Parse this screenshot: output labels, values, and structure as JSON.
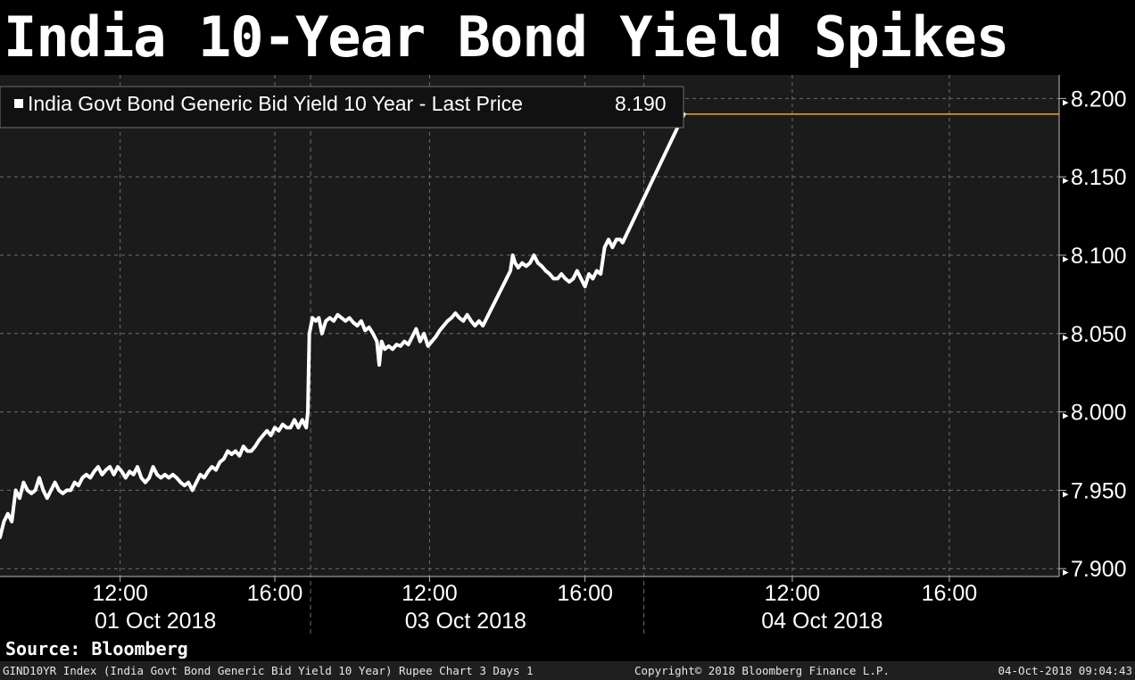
{
  "title": "India 10-Year Bond Yield Spikes",
  "source": "Source: Bloomberg",
  "footer": {
    "left": "GIND10YR Index (India Govt Bond Generic Bid Yield 10 Year) Rupee Chart 3 Days 1",
    "center": "Copyright© 2018 Bloomberg Finance L.P.",
    "right": "04-Oct-2018 09:04:43"
  },
  "colors": {
    "background": "#000000",
    "plot_background": "#1b1b1b",
    "line": "#ffffff",
    "last_price_line": "#f5a623",
    "grid": "#6e6e6e"
  },
  "chart_data": {
    "type": "line",
    "title": "India 10-Year Bond Yield Spikes",
    "legend": "India Govt Bond Generic Bid Yield 10 Year - Last Price",
    "legend_value": "8.190",
    "legend_position": "top-left",
    "last_price": 8.19,
    "ylim": [
      7.895,
      8.215
    ],
    "y_ticks": [
      7.9,
      7.95,
      8.0,
      8.05,
      8.1,
      8.15,
      8.2
    ],
    "y_tick_labels": [
      "7.900",
      "7.950",
      "8.000",
      "8.050",
      "8.100",
      "8.150",
      "8.200"
    ],
    "xlim": [
      0,
      100
    ],
    "x_ticks": [
      {
        "x": 15.3,
        "label": "12:00"
      },
      {
        "x": 35.0,
        "label": "16:00"
      },
      {
        "x": 54.7,
        "label": "12:00"
      },
      {
        "x": 74.5,
        "label": "16:00"
      },
      {
        "x": 100.9,
        "label": "12:00"
      },
      {
        "x": 120.9,
        "label": "16:00"
      }
    ],
    "day_labels": [
      {
        "x": 19.8,
        "label": "01 Oct 2018"
      },
      {
        "x": 59.3,
        "label": "03 Oct 2018"
      },
      {
        "x": 104.7,
        "label": "04 Oct 2018"
      }
    ],
    "grid": true,
    "series": [
      {
        "values": [
          [
            0,
            7.92
          ],
          [
            0.5,
            7.93
          ],
          [
            1,
            7.935
          ],
          [
            1.5,
            7.93
          ],
          [
            2,
            7.95
          ],
          [
            2.5,
            7.945
          ],
          [
            3,
            7.955
          ],
          [
            3.5,
            7.95
          ],
          [
            4,
            7.948
          ],
          [
            4.5,
            7.95
          ],
          [
            5,
            7.958
          ],
          [
            5.5,
            7.95
          ],
          [
            6,
            7.945
          ],
          [
            6.5,
            7.95
          ],
          [
            7,
            7.955
          ],
          [
            7.5,
            7.95
          ],
          [
            8,
            7.948
          ],
          [
            8.5,
            7.95
          ],
          [
            9,
            7.95
          ],
          [
            9.5,
            7.955
          ],
          [
            10,
            7.953
          ],
          [
            10.5,
            7.958
          ],
          [
            11,
            7.96
          ],
          [
            11.5,
            7.958
          ],
          [
            12,
            7.962
          ],
          [
            12.5,
            7.965
          ],
          [
            13,
            7.96
          ],
          [
            13.5,
            7.963
          ],
          [
            14,
            7.965
          ],
          [
            14.5,
            7.96
          ],
          [
            15,
            7.965
          ],
          [
            15.5,
            7.962
          ],
          [
            16,
            7.958
          ],
          [
            16.5,
            7.962
          ],
          [
            17,
            7.96
          ],
          [
            17.5,
            7.965
          ],
          [
            18,
            7.958
          ],
          [
            18.5,
            7.955
          ],
          [
            19,
            7.958
          ],
          [
            19.5,
            7.965
          ],
          [
            20,
            7.96
          ],
          [
            20.5,
            7.958
          ],
          [
            21,
            7.96
          ],
          [
            21.5,
            7.958
          ],
          [
            22,
            7.96
          ],
          [
            22.5,
            7.958
          ],
          [
            23,
            7.955
          ],
          [
            23.5,
            7.953
          ],
          [
            24,
            7.955
          ],
          [
            24.5,
            7.95
          ],
          [
            25,
            7.955
          ],
          [
            25.5,
            7.96
          ],
          [
            26,
            7.958
          ],
          [
            26.5,
            7.962
          ],
          [
            27,
            7.965
          ],
          [
            27.5,
            7.963
          ],
          [
            28,
            7.968
          ],
          [
            28.5,
            7.97
          ],
          [
            29,
            7.975
          ],
          [
            29.5,
            7.973
          ],
          [
            30,
            7.975
          ],
          [
            30.5,
            7.972
          ],
          [
            31,
            7.978
          ],
          [
            31.5,
            7.975
          ],
          [
            32,
            7.975
          ],
          [
            32.5,
            7.978
          ],
          [
            33,
            7.982
          ],
          [
            33.5,
            7.985
          ],
          [
            34,
            7.988
          ],
          [
            34.5,
            7.985
          ],
          [
            35,
            7.99
          ],
          [
            35.5,
            7.988
          ],
          [
            36,
            7.992
          ],
          [
            36.5,
            7.99
          ],
          [
            37,
            7.99
          ],
          [
            37.5,
            7.995
          ],
          [
            38,
            7.99
          ],
          [
            38.5,
            7.995
          ],
          [
            39,
            7.99
          ],
          [
            39.2,
            8.0
          ],
          [
            39.4,
            8.05
          ],
          [
            39.8,
            8.06
          ],
          [
            40.2,
            8.058
          ],
          [
            40.6,
            8.06
          ],
          [
            41,
            8.05
          ],
          [
            41.5,
            8.058
          ],
          [
            42,
            8.06
          ],
          [
            42.5,
            8.058
          ],
          [
            43,
            8.062
          ],
          [
            43.5,
            8.06
          ],
          [
            44,
            8.058
          ],
          [
            44.5,
            8.06
          ],
          [
            45,
            8.057
          ],
          [
            45.5,
            8.055
          ],
          [
            46,
            8.058
          ],
          [
            46.5,
            8.052
          ],
          [
            47,
            8.054
          ],
          [
            47.5,
            8.05
          ],
          [
            48,
            8.045
          ],
          [
            48.3,
            8.03
          ],
          [
            48.6,
            8.045
          ],
          [
            49,
            8.04
          ],
          [
            49.5,
            8.042
          ],
          [
            50,
            8.04
          ],
          [
            50.5,
            8.043
          ],
          [
            51,
            8.042
          ],
          [
            51.5,
            8.045
          ],
          [
            52,
            8.043
          ],
          [
            52.5,
            8.048
          ],
          [
            53,
            8.053
          ],
          [
            53.5,
            8.045
          ],
          [
            54,
            8.05
          ],
          [
            54.5,
            8.042
          ],
          [
            55,
            8.045
          ],
          [
            55.5,
            8.048
          ],
          [
            56,
            8.052
          ],
          [
            56.5,
            8.055
          ],
          [
            57,
            8.058
          ],
          [
            57.5,
            8.06
          ],
          [
            58,
            8.063
          ],
          [
            58.5,
            8.06
          ],
          [
            59,
            8.058
          ],
          [
            59.5,
            8.062
          ],
          [
            60,
            8.058
          ],
          [
            60.5,
            8.055
          ],
          [
            61,
            8.058
          ],
          [
            61.5,
            8.055
          ],
          [
            62,
            8.06
          ],
          [
            62.5,
            8.065
          ],
          [
            63,
            8.07
          ],
          [
            63.5,
            8.075
          ],
          [
            64,
            8.08
          ],
          [
            64.5,
            8.085
          ],
          [
            65,
            8.09
          ],
          [
            65.3,
            8.1
          ],
          [
            65.6,
            8.095
          ],
          [
            66,
            8.092
          ],
          [
            66.5,
            8.095
          ],
          [
            67,
            8.093
          ],
          [
            67.5,
            8.095
          ],
          [
            68,
            8.1
          ],
          [
            68.5,
            8.095
          ],
          [
            69,
            8.093
          ],
          [
            69.5,
            8.09
          ],
          [
            70,
            8.088
          ],
          [
            70.5,
            8.085
          ],
          [
            71,
            8.085
          ],
          [
            71.5,
            8.088
          ],
          [
            72,
            8.085
          ],
          [
            72.5,
            8.083
          ],
          [
            73,
            8.085
          ],
          [
            73.5,
            8.09
          ],
          [
            74,
            8.085
          ],
          [
            74.5,
            8.08
          ],
          [
            75,
            8.088
          ],
          [
            75.5,
            8.085
          ],
          [
            76,
            8.09
          ],
          [
            76.5,
            8.088
          ],
          [
            77,
            8.105
          ],
          [
            77.5,
            8.11
          ],
          [
            78,
            8.105
          ],
          [
            78.5,
            8.11
          ],
          [
            79,
            8.11
          ],
          [
            79.3,
            8.108
          ],
          [
            87.1,
            8.19
          ]
        ]
      }
    ]
  }
}
